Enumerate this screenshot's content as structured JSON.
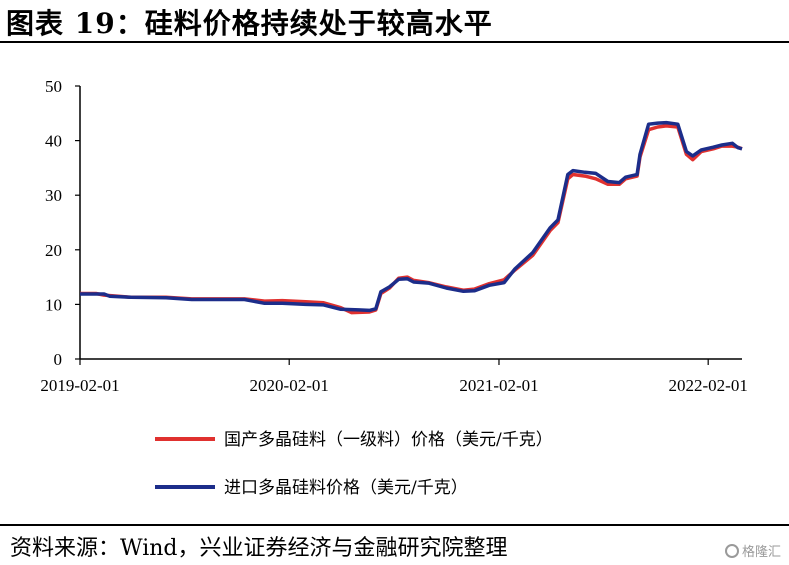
{
  "header": {
    "title": "图表 19：硅料价格持续处于较高水平"
  },
  "footer": {
    "source": "资料来源：Wind，兴业证券经济与金融研究院整理"
  },
  "watermark": {
    "text": "格隆汇"
  },
  "chart_data": {
    "type": "line",
    "ylim": [
      0,
      50
    ],
    "yticks": [
      0,
      10,
      20,
      30,
      40,
      50
    ],
    "xticks": [
      "2019-02-01",
      "2020-02-01",
      "2021-02-01",
      "2022-02-01"
    ],
    "xlim": [
      "2019-02-01",
      "2022-04-01"
    ],
    "grid": false,
    "legend_position": "bottom",
    "series": [
      {
        "name": "国产多晶硅料（一级料）价格（美元/千克）",
        "color": "#e0312f",
        "points": [
          [
            "2019-02-01",
            12.0
          ],
          [
            "2019-03-01",
            12.0
          ],
          [
            "2019-03-15",
            11.7
          ],
          [
            "2019-05-01",
            11.3
          ],
          [
            "2019-07-01",
            11.3
          ],
          [
            "2019-08-15",
            11.0
          ],
          [
            "2019-10-01",
            11.0
          ],
          [
            "2019-11-15",
            11.0
          ],
          [
            "2019-12-20",
            10.6
          ],
          [
            "2020-01-20",
            10.7
          ],
          [
            "2020-03-01",
            10.5
          ],
          [
            "2020-04-01",
            10.3
          ],
          [
            "2020-05-01",
            9.4
          ],
          [
            "2020-05-20",
            8.5
          ],
          [
            "2020-06-20",
            8.6
          ],
          [
            "2020-07-01",
            9.0
          ],
          [
            "2020-07-10",
            12.0
          ],
          [
            "2020-07-25",
            13.0
          ],
          [
            "2020-08-10",
            14.8
          ],
          [
            "2020-08-25",
            15.0
          ],
          [
            "2020-09-05",
            14.4
          ],
          [
            "2020-10-01",
            14.0
          ],
          [
            "2020-11-01",
            13.2
          ],
          [
            "2020-12-01",
            12.6
          ],
          [
            "2020-12-20",
            12.8
          ],
          [
            "2021-01-15",
            13.8
          ],
          [
            "2021-02-10",
            14.5
          ],
          [
            "2021-03-01",
            16.3
          ],
          [
            "2021-04-01",
            19.0
          ],
          [
            "2021-05-01",
            23.5
          ],
          [
            "2021-05-15",
            25.0
          ],
          [
            "2021-06-01",
            33.0
          ],
          [
            "2021-06-10",
            33.8
          ],
          [
            "2021-07-01",
            33.5
          ],
          [
            "2021-07-20",
            33.0
          ],
          [
            "2021-08-10",
            32.0
          ],
          [
            "2021-08-30",
            32.0
          ],
          [
            "2021-09-10",
            33.0
          ],
          [
            "2021-09-30",
            33.5
          ],
          [
            "2021-10-05",
            37.0
          ],
          [
            "2021-10-20",
            42.0
          ],
          [
            "2021-11-05",
            42.5
          ],
          [
            "2021-11-20",
            42.7
          ],
          [
            "2021-12-10",
            42.5
          ],
          [
            "2021-12-25",
            37.5
          ],
          [
            "2022-01-05",
            36.5
          ],
          [
            "2022-01-20",
            38.0
          ],
          [
            "2022-02-10",
            38.5
          ],
          [
            "2022-02-25",
            39.0
          ],
          [
            "2022-03-15",
            39.0
          ],
          [
            "2022-03-25",
            38.8
          ],
          [
            "2022-04-01",
            38.5
          ]
        ]
      },
      {
        "name": "进口多晶硅料价格（美元/千克）",
        "color": "#1c2d8a",
        "points": [
          [
            "2019-02-01",
            11.9
          ],
          [
            "2019-03-15",
            11.9
          ],
          [
            "2019-03-25",
            11.5
          ],
          [
            "2019-05-01",
            11.3
          ],
          [
            "2019-07-01",
            11.2
          ],
          [
            "2019-08-15",
            10.9
          ],
          [
            "2019-10-01",
            10.9
          ],
          [
            "2019-11-15",
            10.9
          ],
          [
            "2019-12-20",
            10.2
          ],
          [
            "2020-01-20",
            10.2
          ],
          [
            "2020-03-01",
            10.0
          ],
          [
            "2020-04-01",
            9.9
          ],
          [
            "2020-05-01",
            9.1
          ],
          [
            "2020-06-01",
            9.0
          ],
          [
            "2020-06-20",
            8.9
          ],
          [
            "2020-07-01",
            9.2
          ],
          [
            "2020-07-10",
            12.3
          ],
          [
            "2020-07-25",
            13.2
          ],
          [
            "2020-08-10",
            14.6
          ],
          [
            "2020-08-25",
            14.7
          ],
          [
            "2020-09-05",
            14.1
          ],
          [
            "2020-10-01",
            13.9
          ],
          [
            "2020-11-01",
            13.0
          ],
          [
            "2020-12-01",
            12.4
          ],
          [
            "2020-12-20",
            12.5
          ],
          [
            "2021-01-15",
            13.5
          ],
          [
            "2021-02-10",
            14.0
          ],
          [
            "2021-03-01",
            16.5
          ],
          [
            "2021-04-01",
            19.5
          ],
          [
            "2021-05-01",
            24.0
          ],
          [
            "2021-05-15",
            25.5
          ],
          [
            "2021-06-01",
            33.8
          ],
          [
            "2021-06-10",
            34.5
          ],
          [
            "2021-07-01",
            34.2
          ],
          [
            "2021-07-20",
            34.0
          ],
          [
            "2021-08-10",
            32.5
          ],
          [
            "2021-08-30",
            32.3
          ],
          [
            "2021-09-10",
            33.3
          ],
          [
            "2021-09-30",
            33.8
          ],
          [
            "2021-10-05",
            37.5
          ],
          [
            "2021-10-20",
            43.0
          ],
          [
            "2021-11-05",
            43.2
          ],
          [
            "2021-11-20",
            43.3
          ],
          [
            "2021-12-10",
            43.0
          ],
          [
            "2021-12-25",
            38.0
          ],
          [
            "2022-01-05",
            37.2
          ],
          [
            "2022-01-20",
            38.3
          ],
          [
            "2022-02-10",
            38.8
          ],
          [
            "2022-02-25",
            39.2
          ],
          [
            "2022-03-15",
            39.5
          ],
          [
            "2022-03-25",
            38.7
          ],
          [
            "2022-04-01",
            38.5
          ]
        ]
      }
    ]
  }
}
